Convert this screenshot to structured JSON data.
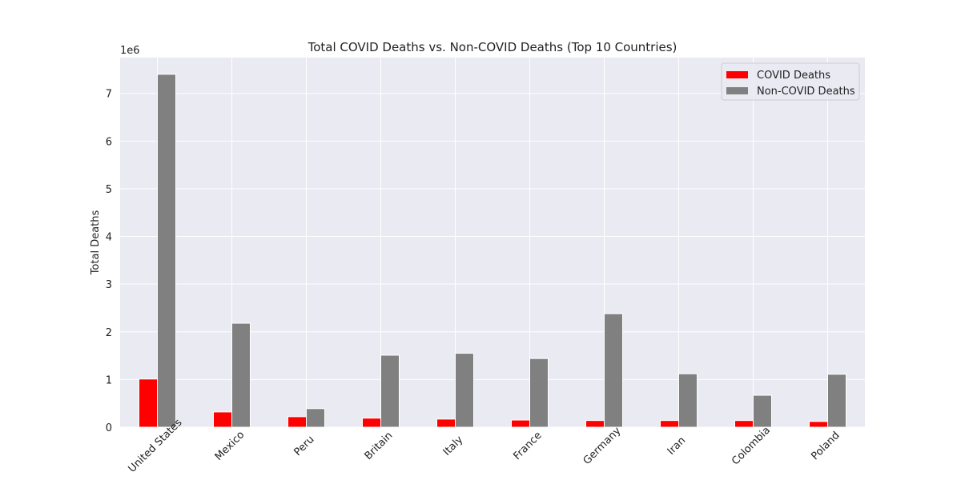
{
  "chart_data": {
    "type": "bar",
    "title": "Total COVID Deaths vs. Non-COVID Deaths (Top 10 Countries)",
    "xlabel": "",
    "ylabel": "Total Deaths",
    "y_offset_label": "1e6",
    "ylim": [
      0,
      7.75
    ],
    "yticks": [
      0,
      1,
      2,
      3,
      4,
      5,
      6,
      7
    ],
    "grid": true,
    "legend_position": "top-right",
    "categories": [
      "United States",
      "Mexico",
      "Peru",
      "Britain",
      "Italy",
      "France",
      "Germany",
      "Iran",
      "Colombia",
      "Poland"
    ],
    "series": [
      {
        "name": "COVID Deaths",
        "color": "#ff0000",
        "values": [
          1.01,
          0.32,
          0.22,
          0.19,
          0.17,
          0.15,
          0.14,
          0.14,
          0.14,
          0.12
        ]
      },
      {
        "name": "Non-COVID Deaths",
        "color": "#808080",
        "values": [
          7.4,
          2.18,
          0.39,
          1.51,
          1.55,
          1.44,
          2.38,
          1.12,
          0.67,
          1.11
        ]
      }
    ]
  },
  "colors": {
    "plot_background": "#eaeaf2",
    "grid": "#ffffff"
  }
}
